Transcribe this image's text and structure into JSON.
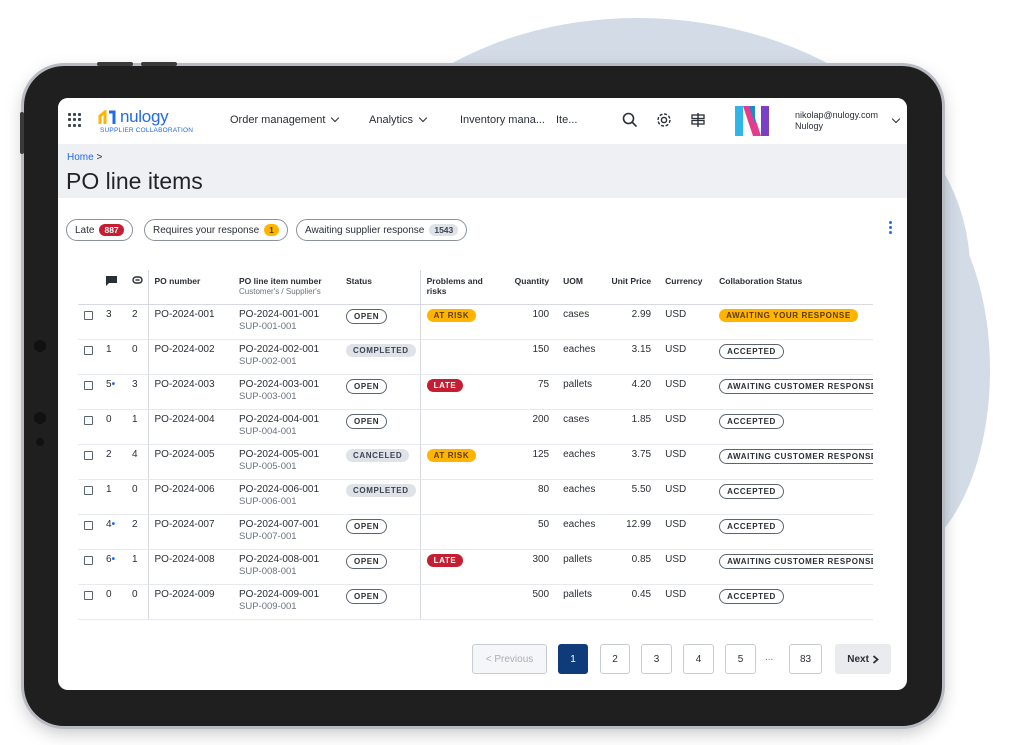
{
  "nav": {
    "logo_brand": "nulogy",
    "logo_sub": "SUPPLIER COLLABORATION",
    "items": [
      "Order management",
      "Analytics",
      "Inventory mana...",
      "Ite..."
    ],
    "user_email": "nikolap@nulogy.com",
    "user_org": "Nulogy"
  },
  "breadcrumb": {
    "home": "Home",
    "sep": ">"
  },
  "page_title": "PO line items",
  "filters": [
    {
      "label": "Late",
      "count": "887"
    },
    {
      "label": "Requires your response",
      "count": "1"
    },
    {
      "label": "Awaiting supplier response",
      "count": "1543"
    }
  ],
  "table": {
    "headers": {
      "po_number": "PO number",
      "line_item": "PO line item number",
      "line_item_sub": "Customer's / Supplier's",
      "status": "Status",
      "problems": "Problems and",
      "problems2": "risks",
      "quantity": "Quantity",
      "uom": "UOM",
      "unit_price": "Unit Price",
      "currency": "Currency",
      "collab": "Collaboration Status"
    },
    "rows": [
      {
        "comments": "3",
        "dot": "",
        "attach": "2",
        "po": "PO-2024-001",
        "line": "PO-2024-001-001",
        "sline": "SUP-001-001",
        "status": "OPEN",
        "risk": "AT RISK",
        "qty": "100",
        "uom": "cases",
        "price": "2.99",
        "cur": "USD",
        "collab": "AWAITING YOUR RESPONSE"
      },
      {
        "comments": "1",
        "dot": "",
        "attach": "0",
        "po": "PO-2024-002",
        "line": "PO-2024-002-001",
        "sline": "SUP-002-001",
        "status": "COMPLETED",
        "risk": "",
        "qty": "150",
        "uom": "eaches",
        "price": "3.15",
        "cur": "USD",
        "collab": "ACCEPTED"
      },
      {
        "comments": "5",
        "dot": "•",
        "attach": "3",
        "po": "PO-2024-003",
        "line": "PO-2024-003-001",
        "sline": "SUP-003-001",
        "status": "OPEN",
        "risk": "LATE",
        "qty": "75",
        "uom": "pallets",
        "price": "4.20",
        "cur": "USD",
        "collab": "AWAITING CUSTOMER RESPONSE"
      },
      {
        "comments": "0",
        "dot": "",
        "attach": "1",
        "po": "PO-2024-004",
        "line": "PO-2024-004-001",
        "sline": "SUP-004-001",
        "status": "OPEN",
        "risk": "",
        "qty": "200",
        "uom": "cases",
        "price": "1.85",
        "cur": "USD",
        "collab": "ACCEPTED"
      },
      {
        "comments": "2",
        "dot": "",
        "attach": "4",
        "po": "PO-2024-005",
        "line": "PO-2024-005-001",
        "sline": "SUP-005-001",
        "status": "CANCELED",
        "risk": "AT RISK",
        "qty": "125",
        "uom": "eaches",
        "price": "3.75",
        "cur": "USD",
        "collab": "AWAITING CUSTOMER RESPONSE"
      },
      {
        "comments": "1",
        "dot": "",
        "attach": "0",
        "po": "PO-2024-006",
        "line": "PO-2024-006-001",
        "sline": "SUP-006-001",
        "status": "COMPLETED",
        "risk": "",
        "qty": "80",
        "uom": "eaches",
        "price": "5.50",
        "cur": "USD",
        "collab": "ACCEPTED"
      },
      {
        "comments": "4",
        "dot": "•",
        "attach": "2",
        "po": "PO-2024-007",
        "line": "PO-2024-007-001",
        "sline": "SUP-007-001",
        "status": "OPEN",
        "risk": "",
        "qty": "50",
        "uom": "eaches",
        "price": "12.99",
        "cur": "USD",
        "collab": "ACCEPTED"
      },
      {
        "comments": "6",
        "dot": "•",
        "attach": "1",
        "po": "PO-2024-008",
        "line": "PO-2024-008-001",
        "sline": "SUP-008-001",
        "status": "OPEN",
        "risk": "LATE",
        "qty": "300",
        "uom": "pallets",
        "price": "0.85",
        "cur": "USD",
        "collab": "AWAITING CUSTOMER RESPONSE"
      },
      {
        "comments": "0",
        "dot": "",
        "attach": "0",
        "po": "PO-2024-009",
        "line": "PO-2024-009-001",
        "sline": "SUP-009-001",
        "status": "OPEN",
        "risk": "",
        "qty": "500",
        "uom": "pallets",
        "price": "0.45",
        "cur": "USD",
        "collab": "ACCEPTED"
      }
    ]
  },
  "pagination": {
    "previous": "< Previous",
    "pages": [
      "1",
      "2",
      "3",
      "4",
      "5"
    ],
    "ellipsis": "...",
    "last": "83",
    "next": "Next",
    "current": "1"
  },
  "colors": {
    "brand": "#216beb",
    "active_page": "#0f3b7a",
    "late": "#c51d31",
    "risk": "#ffb400"
  }
}
